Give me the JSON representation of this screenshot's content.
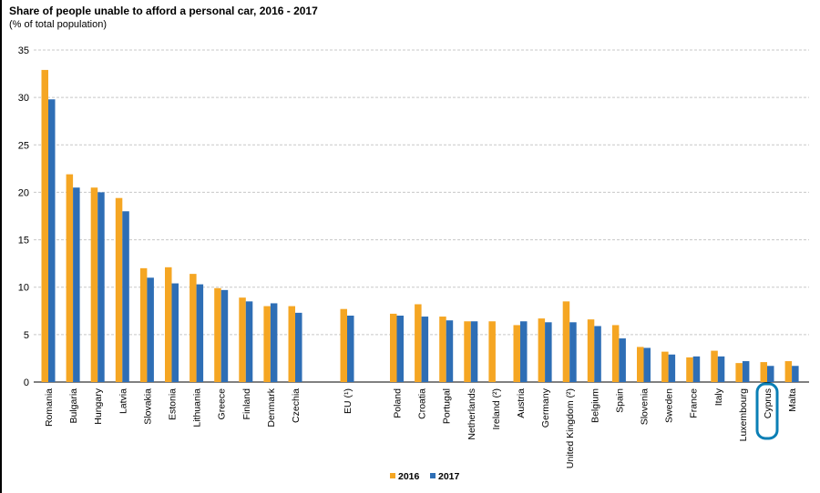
{
  "chart_data": {
    "type": "bar",
    "title": "Share of people unable to afford a personal car, 2016 - 2017",
    "subtitle": "(% of total population)",
    "categories": [
      "Romania",
      "Bulgaria",
      "Hungary",
      "Latvia",
      "Slovakia",
      "Estonia",
      "Lithuania",
      "Greece",
      "Finland",
      "Denmark",
      "Czechia",
      "EU (¹)",
      "Poland",
      "Croatia",
      "Portugal",
      "Netherlands",
      "Ireland (²)",
      "Austria",
      "Germany",
      "United Kingdom (²)",
      "Belgium",
      "Spain",
      "Slovenia",
      "Sweden",
      "France",
      "Italy",
      "Luxembourg",
      "Cyprus",
      "Malta"
    ],
    "series": [
      {
        "name": "2016",
        "color": "#f5a623",
        "values": [
          32.9,
          21.9,
          20.5,
          19.4,
          12.0,
          12.1,
          11.4,
          9.9,
          8.9,
          8.0,
          8.0,
          7.7,
          7.2,
          8.2,
          6.9,
          6.4,
          6.4,
          6.0,
          6.7,
          8.5,
          6.6,
          6.0,
          3.7,
          3.2,
          2.6,
          3.3,
          2.0,
          2.1,
          2.2
        ]
      },
      {
        "name": "2017",
        "color": "#2e6eb5",
        "values": [
          29.8,
          20.5,
          20.0,
          18.0,
          11.0,
          10.4,
          10.3,
          9.7,
          8.5,
          8.3,
          7.3,
          7.0,
          7.0,
          6.9,
          6.5,
          6.4,
          null,
          6.4,
          6.3,
          6.3,
          5.9,
          4.6,
          3.6,
          2.9,
          2.7,
          2.7,
          2.2,
          1.7,
          1.7
        ]
      }
    ],
    "ylim": [
      0,
      35
    ],
    "yticks": [
      0,
      5,
      10,
      15,
      20,
      25,
      30,
      35
    ],
    "grid": true,
    "legend_position": "bottom-center",
    "highlighted_category": "Cyprus",
    "highlight_color": "#0b7fb5"
  }
}
